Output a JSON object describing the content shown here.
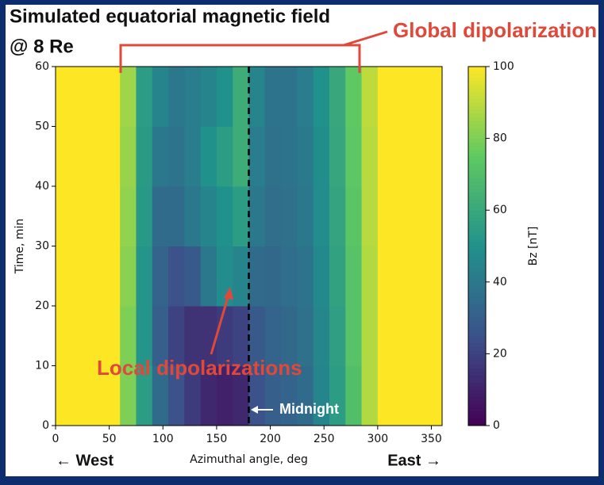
{
  "chart_data": {
    "type": "heatmap",
    "title": "Simulated equatorial magnetic field",
    "subtitle": "@ 8 Re",
    "xlabel": "Azimuthal angle, deg",
    "ylabel": "Time, min",
    "colorbar_label": "Bz [nT]",
    "annotations": {
      "global": "Global dipolarization",
      "local": "Local dipolarizations",
      "midnight": "Midnight",
      "west": "← West",
      "east": "East →"
    },
    "midnight_x": 180,
    "x_edges": [
      0,
      15,
      30,
      45,
      60,
      75,
      90,
      105,
      120,
      135,
      150,
      165,
      180,
      195,
      210,
      225,
      240,
      255,
      270,
      285,
      300,
      315,
      330,
      345,
      360
    ],
    "y_edges": [
      0,
      10,
      20,
      30,
      40,
      50,
      60
    ],
    "z": [
      [
        100,
        100,
        100,
        100,
        80,
        55,
        35,
        25,
        18,
        12,
        10,
        12,
        25,
        30,
        32,
        35,
        45,
        55,
        70,
        88,
        100,
        100,
        100,
        100
      ],
      [
        100,
        100,
        100,
        100,
        80,
        52,
        30,
        20,
        15,
        15,
        18,
        20,
        28,
        32,
        34,
        37,
        46,
        56,
        72,
        88,
        100,
        100,
        100,
        100
      ],
      [
        100,
        100,
        100,
        100,
        82,
        52,
        32,
        25,
        28,
        40,
        48,
        45,
        35,
        34,
        36,
        38,
        47,
        57,
        72,
        88,
        100,
        100,
        100,
        100
      ],
      [
        100,
        100,
        100,
        100,
        83,
        53,
        35,
        35,
        40,
        45,
        50,
        55,
        40,
        36,
        37,
        40,
        48,
        58,
        73,
        89,
        100,
        100,
        100,
        100
      ],
      [
        100,
        100,
        100,
        100,
        84,
        54,
        40,
        38,
        42,
        50,
        55,
        62,
        42,
        37,
        38,
        41,
        49,
        59,
        74,
        89,
        100,
        100,
        100,
        100
      ],
      [
        100,
        100,
        100,
        100,
        85,
        55,
        45,
        40,
        42,
        45,
        50,
        62,
        45,
        38,
        38,
        42,
        50,
        60,
        75,
        90,
        100,
        100,
        100,
        100
      ]
    ],
    "colorscale": [
      "#440154",
      "#3b528b",
      "#21918c",
      "#5ec962",
      "#fde725"
    ],
    "xlim": [
      0,
      360
    ],
    "xticks": [
      0,
      50,
      100,
      150,
      200,
      250,
      300,
      350
    ],
    "ylim": [
      0,
      60
    ],
    "yticks": [
      0,
      10,
      20,
      30,
      40,
      50,
      60
    ],
    "zlim": [
      0,
      100
    ],
    "zticks": [
      0,
      20,
      40,
      60,
      80,
      100
    ],
    "annotation_color": "#e0493a"
  }
}
